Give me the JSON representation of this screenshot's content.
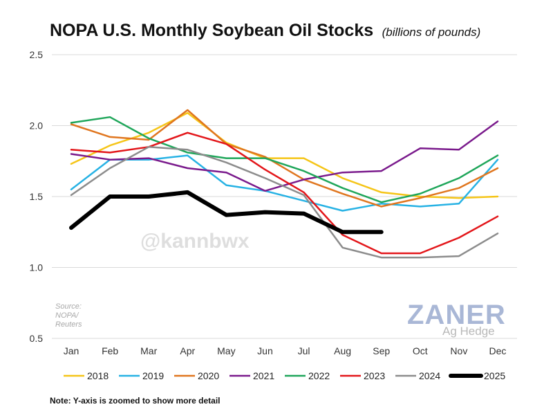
{
  "title": "NOPA U.S. Monthly Soybean Oil Stocks",
  "subtitle": "(billions of pounds)",
  "note": "Note: Y-axis is zoomed to show more detail",
  "source_lines": [
    "Source:",
    "NOPA/",
    "Reuters"
  ],
  "watermark": "@kannbwx",
  "logo": {
    "main": "ZANER",
    "sub": "Ag Hedge"
  },
  "chart_data": {
    "type": "line",
    "title": "NOPA U.S. Monthly Soybean Oil Stocks",
    "xlabel": "",
    "ylabel": "",
    "ylim": [
      0.5,
      2.5
    ],
    "yticks": [
      "0.5",
      "1.0",
      "1.5",
      "2.0",
      "2.5"
    ],
    "ytick_values": [
      0.5,
      1.0,
      1.5,
      2.0,
      2.5
    ],
    "grid": true,
    "legend": "bottom",
    "categories": [
      "Jan",
      "Feb",
      "Mar",
      "Apr",
      "May",
      "Jun",
      "Jul",
      "Aug",
      "Sep",
      "Oct",
      "Nov",
      "Dec"
    ],
    "series": [
      {
        "name": "2018",
        "color": "#f5c518",
        "width": 2.5,
        "values": [
          1.73,
          1.86,
          1.95,
          2.09,
          1.88,
          1.77,
          1.77,
          1.63,
          1.53,
          1.5,
          1.49,
          1.5
        ]
      },
      {
        "name": "2019",
        "color": "#27b2e4",
        "width": 2.5,
        "values": [
          1.55,
          1.76,
          1.76,
          1.79,
          1.58,
          1.54,
          1.47,
          1.4,
          1.45,
          1.43,
          1.45,
          1.76
        ]
      },
      {
        "name": "2020",
        "color": "#e0761f",
        "width": 2.5,
        "values": [
          2.01,
          1.92,
          1.9,
          2.11,
          1.87,
          1.78,
          1.62,
          1.52,
          1.43,
          1.49,
          1.56,
          1.7
        ]
      },
      {
        "name": "2021",
        "color": "#7a1a8c",
        "width": 2.5,
        "values": [
          1.8,
          1.76,
          1.77,
          1.7,
          1.67,
          1.54,
          1.62,
          1.67,
          1.68,
          1.84,
          1.83,
          2.03
        ]
      },
      {
        "name": "2022",
        "color": "#1fa65a",
        "width": 2.5,
        "values": [
          2.02,
          2.06,
          1.91,
          1.81,
          1.77,
          1.77,
          1.68,
          1.56,
          1.46,
          1.52,
          1.63,
          1.79
        ]
      },
      {
        "name": "2023",
        "color": "#e3161a",
        "width": 2.5,
        "values": [
          1.83,
          1.81,
          1.85,
          1.95,
          1.87,
          1.69,
          1.53,
          1.23,
          1.1,
          1.1,
          1.21,
          1.36
        ]
      },
      {
        "name": "2024",
        "color": "#8c8c8c",
        "width": 2.5,
        "values": [
          1.51,
          1.7,
          1.85,
          1.83,
          1.74,
          1.63,
          1.51,
          1.14,
          1.07,
          1.07,
          1.08,
          1.24
        ]
      },
      {
        "name": "2025",
        "color": "#000000",
        "width": 6,
        "values": [
          1.28,
          1.5,
          1.5,
          1.53,
          1.37,
          1.39,
          1.38,
          1.25,
          1.25,
          null,
          null,
          null
        ]
      }
    ]
  }
}
